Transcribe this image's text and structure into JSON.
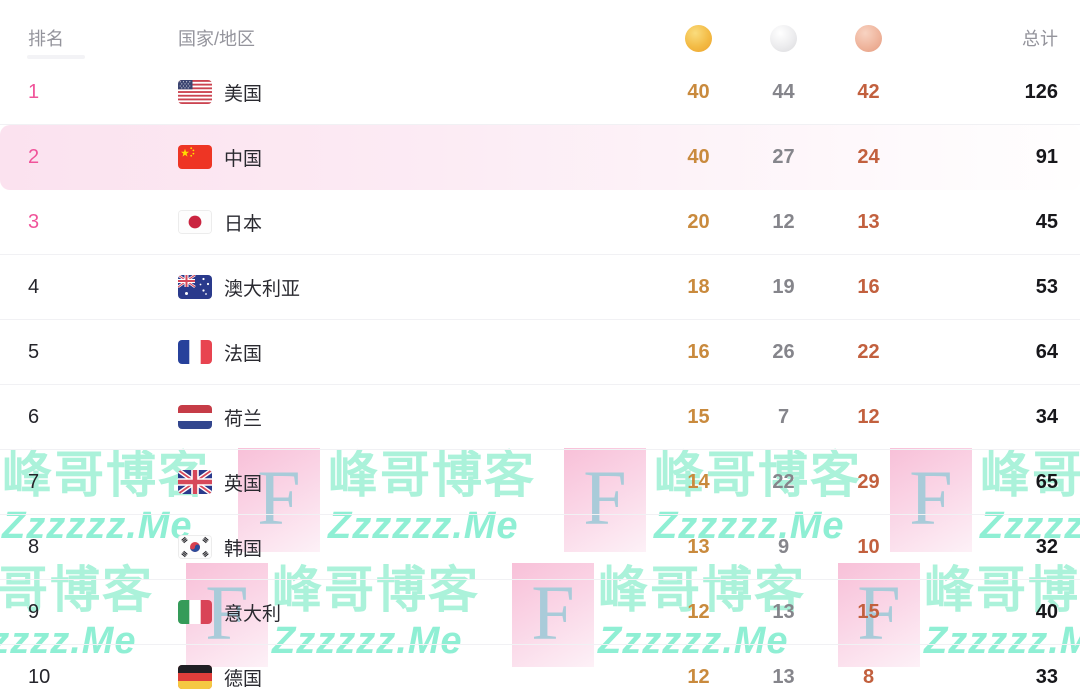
{
  "table": {
    "headers": {
      "rank": "排名",
      "country": "国家/地区",
      "total": "总计"
    },
    "medal_icons": [
      "gold-medal-icon",
      "silver-medal-icon",
      "bronze-medal-icon"
    ],
    "rows": [
      {
        "rank": "1",
        "country": "美国",
        "flag": "us",
        "gold": "40",
        "silver": "44",
        "bronze": "42",
        "total": "126",
        "top3": true,
        "highlighted": false
      },
      {
        "rank": "2",
        "country": "中国",
        "flag": "cn",
        "gold": "40",
        "silver": "27",
        "bronze": "24",
        "total": "91",
        "top3": true,
        "highlighted": true
      },
      {
        "rank": "3",
        "country": "日本",
        "flag": "jp",
        "gold": "20",
        "silver": "12",
        "bronze": "13",
        "total": "45",
        "top3": true,
        "highlighted": false
      },
      {
        "rank": "4",
        "country": "澳大利亚",
        "flag": "au",
        "gold": "18",
        "silver": "19",
        "bronze": "16",
        "total": "53",
        "top3": false,
        "highlighted": false
      },
      {
        "rank": "5",
        "country": "法国",
        "flag": "fr",
        "gold": "16",
        "silver": "26",
        "bronze": "22",
        "total": "64",
        "top3": false,
        "highlighted": false
      },
      {
        "rank": "6",
        "country": "荷兰",
        "flag": "nl",
        "gold": "15",
        "silver": "7",
        "bronze": "12",
        "total": "34",
        "top3": false,
        "highlighted": false
      },
      {
        "rank": "7",
        "country": "英国",
        "flag": "gb",
        "gold": "14",
        "silver": "22",
        "bronze": "29",
        "total": "65",
        "top3": false,
        "highlighted": false
      },
      {
        "rank": "8",
        "country": "韩国",
        "flag": "kr",
        "gold": "13",
        "silver": "9",
        "bronze": "10",
        "total": "32",
        "top3": false,
        "highlighted": false
      },
      {
        "rank": "9",
        "country": "意大利",
        "flag": "it",
        "gold": "12",
        "silver": "13",
        "bronze": "15",
        "total": "40",
        "top3": false,
        "highlighted": false
      },
      {
        "rank": "10",
        "country": "德国",
        "flag": "de",
        "gold": "12",
        "silver": "13",
        "bronze": "8",
        "total": "33",
        "top3": false,
        "highlighted": false
      }
    ]
  },
  "watermark": {
    "text": "峰哥博客",
    "subtext": "Zzzzzz.Me",
    "letter": "F"
  },
  "colors": {
    "gold_number": "#c98a3d",
    "silver_number": "#85858b",
    "bronze_number": "#c2603e",
    "total_number": "#17171b",
    "rank_top3": "#f0549a",
    "highlight_row": "#fbe2ef",
    "watermark_text": "#abf2da",
    "watermark_subtext": "#8fefd4",
    "watermark_box": "#f8c0d8",
    "watermark_letter": "#a9cbd9"
  }
}
